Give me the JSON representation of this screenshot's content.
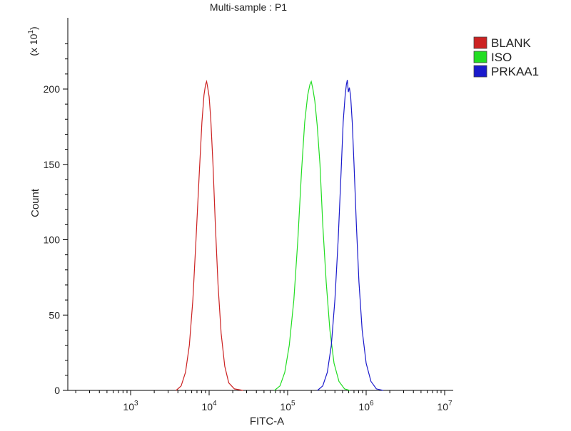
{
  "chart_data": {
    "type": "line",
    "title": "Multi-sample : P1",
    "xlabel": "FITC-A",
    "ylabel": "Count",
    "y_multiplier": "(x 10",
    "y_multiplier_exp": "1",
    "y_multiplier_close": ")",
    "x_scale": "log",
    "xlim": [
      150,
      10000000
    ],
    "ylim": [
      0,
      240
    ],
    "x_ticks": [
      {
        "base": "10",
        "exp": "3",
        "value": 1000
      },
      {
        "base": "10",
        "exp": "4",
        "value": 10000
      },
      {
        "base": "10",
        "exp": "5",
        "value": 100000
      },
      {
        "base": "10",
        "exp": "6",
        "value": 1000000
      },
      {
        "base": "10",
        "exp": "7",
        "value": 10000000
      }
    ],
    "y_ticks": [
      0,
      50,
      100,
      150,
      200
    ],
    "grid": false,
    "legend_position": "top-right",
    "series": [
      {
        "name": "BLANK",
        "color": "#cc2222",
        "points": [
          [
            3800,
            0
          ],
          [
            4400,
            3
          ],
          [
            5000,
            12
          ],
          [
            5600,
            30
          ],
          [
            6200,
            60
          ],
          [
            6800,
            100
          ],
          [
            7500,
            145
          ],
          [
            8100,
            178
          ],
          [
            8600,
            196
          ],
          [
            9000,
            203
          ],
          [
            9300,
            205
          ],
          [
            9600,
            201
          ],
          [
            10000,
            195
          ],
          [
            10500,
            180
          ],
          [
            11200,
            150
          ],
          [
            12000,
            110
          ],
          [
            13000,
            70
          ],
          [
            14200,
            38
          ],
          [
            15800,
            16
          ],
          [
            17800,
            5
          ],
          [
            21000,
            1
          ],
          [
            27000,
            0
          ]
        ]
      },
      {
        "name": "ISO",
        "color": "#22dd22",
        "points": [
          [
            68000,
            0
          ],
          [
            80000,
            3
          ],
          [
            92000,
            12
          ],
          [
            105000,
            30
          ],
          [
            120000,
            60
          ],
          [
            135000,
            100
          ],
          [
            150000,
            145
          ],
          [
            165000,
            178
          ],
          [
            180000,
            196
          ],
          [
            192000,
            203
          ],
          [
            200000,
            205
          ],
          [
            210000,
            200
          ],
          [
            222000,
            192
          ],
          [
            238000,
            176
          ],
          [
            258000,
            150
          ],
          [
            280000,
            110
          ],
          [
            310000,
            72
          ],
          [
            345000,
            40
          ],
          [
            390000,
            18
          ],
          [
            450000,
            6
          ],
          [
            530000,
            1
          ],
          [
            620000,
            0
          ]
        ]
      },
      {
        "name": "PRKAA1",
        "color": "#1a1acc",
        "points": [
          [
            240000,
            0
          ],
          [
            280000,
            3
          ],
          [
            320000,
            12
          ],
          [
            360000,
            30
          ],
          [
            400000,
            60
          ],
          [
            440000,
            100
          ],
          [
            480000,
            145
          ],
          [
            510000,
            178
          ],
          [
            540000,
            196
          ],
          [
            560000,
            203
          ],
          [
            575000,
            206
          ],
          [
            592000,
            198
          ],
          [
            612000,
            201
          ],
          [
            635000,
            195
          ],
          [
            665000,
            178
          ],
          [
            700000,
            150
          ],
          [
            750000,
            110
          ],
          [
            810000,
            72
          ],
          [
            890000,
            40
          ],
          [
            1000000,
            18
          ],
          [
            1150000,
            6
          ],
          [
            1350000,
            1
          ],
          [
            1650000,
            0
          ]
        ]
      }
    ]
  }
}
